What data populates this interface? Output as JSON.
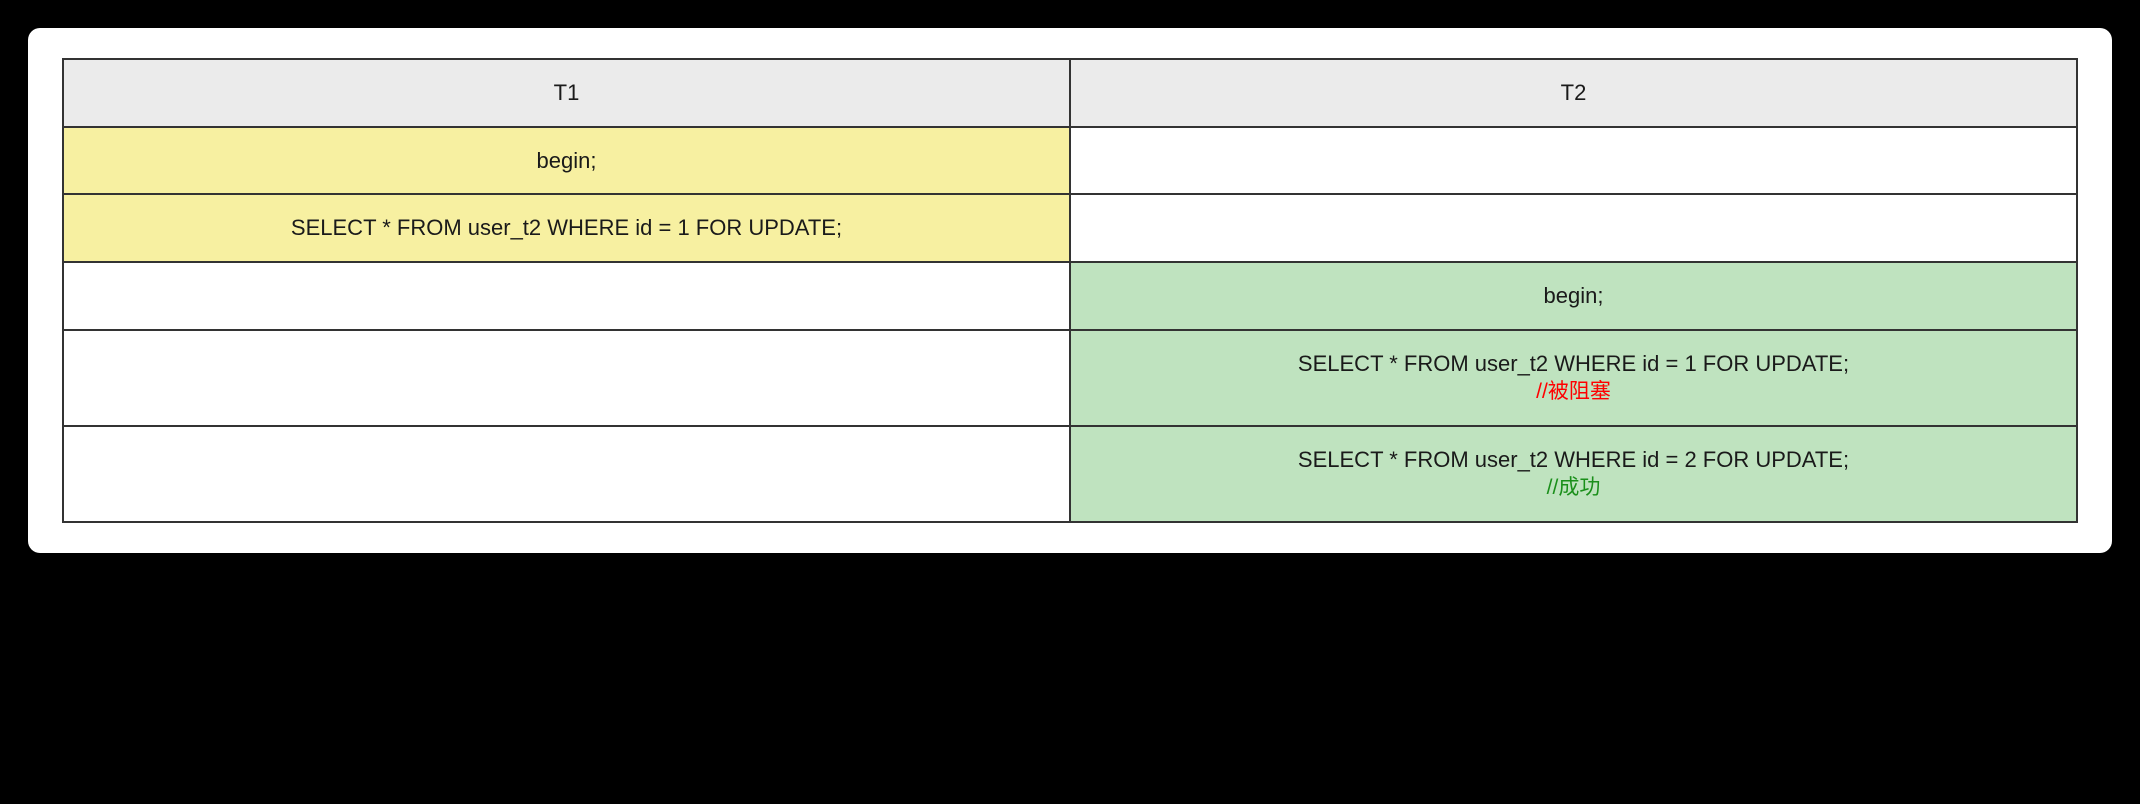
{
  "table": {
    "columns": [
      "T1",
      "T2"
    ],
    "header_bg": "#ebebeb",
    "border_color": "#333333",
    "cell_font_size": 22,
    "colors": {
      "yellow": "#f7f0a1",
      "green": "#bfe3bf",
      "white": "#ffffff"
    },
    "rows": [
      {
        "t1": {
          "text": "begin;",
          "bg": "yellow",
          "note": null
        },
        "t2": {
          "text": "",
          "bg": "white",
          "note": null
        }
      },
      {
        "t1": {
          "text": "SELECT * FROM user_t2 WHERE id = 1 FOR UPDATE;",
          "bg": "yellow",
          "note": null
        },
        "t2": {
          "text": "",
          "bg": "white",
          "note": null
        }
      },
      {
        "t1": {
          "text": "",
          "bg": "white",
          "note": null
        },
        "t2": {
          "text": "begin;",
          "bg": "green",
          "note": null
        }
      },
      {
        "t1": {
          "text": "",
          "bg": "white",
          "note": null
        },
        "t2": {
          "text": "SELECT * FROM user_t2 WHERE id = 1 FOR UPDATE;",
          "bg": "green",
          "note": {
            "text": "//被阻塞",
            "color": "red"
          }
        }
      },
      {
        "t1": {
          "text": "",
          "bg": "white",
          "note": null
        },
        "t2": {
          "text": "SELECT * FROM user_t2 WHERE id = 2 FOR UPDATE;",
          "bg": "green",
          "note": {
            "text": "//成功",
            "color": "green"
          }
        }
      }
    ]
  },
  "panel": {
    "background": "#ffffff",
    "outer_background": "#000000",
    "border_radius": 12
  }
}
